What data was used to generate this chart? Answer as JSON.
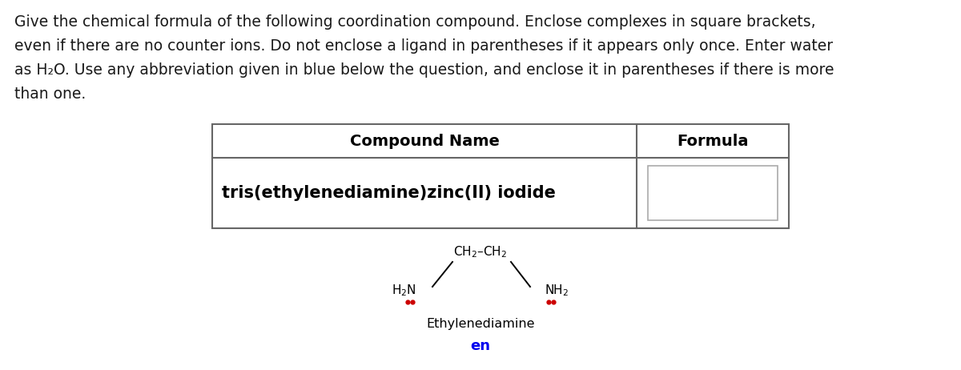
{
  "background_color": "#ffffff",
  "instruction_lines": [
    "Give the chemical formula of the following coordination compound. Enclose complexes in square brackets,",
    "even if there are no counter ions. Do not enclose a ligand in parentheses if it appears only once. Enter water",
    "as H₂O. Use any abbreviation given in blue below the question, and enclose it in parentheses if there is more",
    "than one."
  ],
  "instruction_fontsize": 13.5,
  "instruction_color": "#1a1a1a",
  "table_header_left": "Compound Name",
  "table_header_right": "Formula",
  "table_header_fontsize": 14,
  "compound_name": "tris(ethylenediamine)zinc(II) iodide",
  "compound_name_fontsize": 15,
  "mol_label": "Ethylenediamine",
  "mol_abbrev": "en",
  "mol_abbrev_color": "#0000ee",
  "mol_label_fontsize": 11.5,
  "mol_abbrev_fontsize": 13,
  "dot_color": "#cc0000",
  "table_border_color": "#666666",
  "answer_box_color": "#aaaaaa"
}
